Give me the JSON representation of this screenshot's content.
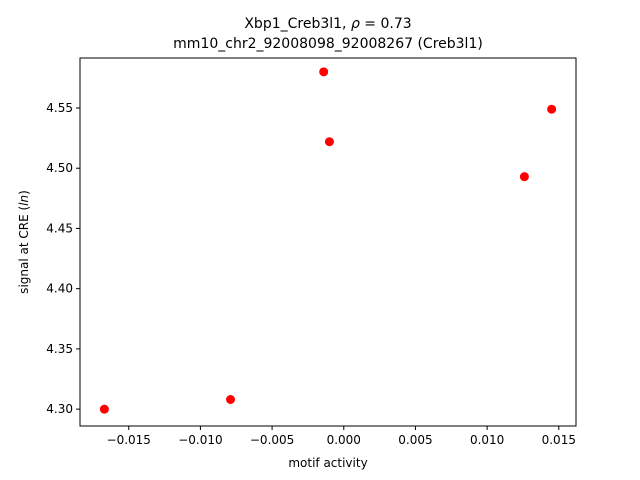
{
  "chart_data": {
    "type": "scatter",
    "title_line1": "Xbp1_Creb3l1, ",
    "title_rho_symbol": "ρ",
    "title_rho_suffix": " = 0.73",
    "title_line2": "mm10_chr2_92008098_92008267 (Creb3l1)",
    "xlabel": "motif activity",
    "ylabel_prefix": "signal at CRE (",
    "ylabel_italic": "ln",
    "ylabel_suffix": ")",
    "xlim": [
      -0.0184,
      0.0162
    ],
    "ylim": [
      4.286,
      4.5915
    ],
    "x_ticks": [
      -0.015,
      -0.01,
      -0.005,
      0.0,
      0.005,
      0.01,
      0.015
    ],
    "x_tick_labels": [
      "−0.015",
      "−0.010",
      "−0.005",
      "0.000",
      "0.005",
      "0.010",
      "0.015"
    ],
    "y_ticks": [
      4.3,
      4.35,
      4.4,
      4.45,
      4.5,
      4.55
    ],
    "y_tick_labels": [
      "4.30",
      "4.35",
      "4.40",
      "4.45",
      "4.50",
      "4.55"
    ],
    "grid": false,
    "legend": "none",
    "marker_color": "#ff0000",
    "points": [
      {
        "x": -0.0167,
        "y": 4.3
      },
      {
        "x": -0.0079,
        "y": 4.308
      },
      {
        "x": -0.0014,
        "y": 4.58
      },
      {
        "x": -0.001,
        "y": 4.522
      },
      {
        "x": 0.0126,
        "y": 4.493
      },
      {
        "x": 0.0145,
        "y": 4.549
      }
    ]
  }
}
